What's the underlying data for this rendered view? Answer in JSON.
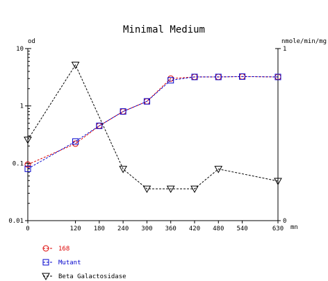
{
  "chart_data": {
    "type": "line",
    "title": "Minimal Medium",
    "xlabel": "mn",
    "ylabel_left": "od",
    "ylabel_right": "nmole/min/mg",
    "x_ticks": [
      0,
      120,
      180,
      240,
      300,
      360,
      420,
      480,
      540,
      630
    ],
    "xlim": [
      0,
      630
    ],
    "y_left": {
      "scale": "log",
      "ylim": [
        0.01,
        10
      ],
      "ticks": [
        10,
        1,
        0.1,
        0.01
      ],
      "tick_labels": [
        "10",
        "1",
        "0.1",
        "0.01"
      ]
    },
    "y_right": {
      "scale": "linear",
      "ylim": [
        0,
        1
      ],
      "ticks": [
        1,
        0
      ],
      "tick_labels": [
        "1",
        "0"
      ]
    },
    "grid": false,
    "legend_position": "bottom-left",
    "series": [
      {
        "name": "168",
        "axis": "left",
        "color": "#dd0000",
        "marker": "circle",
        "x": [
          0,
          120,
          180,
          240,
          300,
          360,
          420,
          480,
          540,
          630
        ],
        "y": [
          0.095,
          0.22,
          0.45,
          0.8,
          1.2,
          3.0,
          3.2,
          3.2,
          3.25,
          3.2
        ]
      },
      {
        "name": "Mutant",
        "axis": "left",
        "color": "#0000cc",
        "marker": "square",
        "x": [
          0,
          120,
          180,
          240,
          300,
          360,
          420,
          480,
          540,
          630
        ],
        "y": [
          0.08,
          0.24,
          0.45,
          0.8,
          1.2,
          2.8,
          3.2,
          3.2,
          3.25,
          3.2
        ]
      },
      {
        "name": "Beta Galactosidase",
        "axis": "right",
        "color": "#000000",
        "marker": "triangle-down",
        "x": [
          0,
          120,
          240,
          300,
          360,
          420,
          480,
          630
        ],
        "y": [
          0.47,
          0.905,
          0.3,
          0.185,
          0.185,
          0.185,
          0.3,
          0.23
        ]
      }
    ]
  }
}
